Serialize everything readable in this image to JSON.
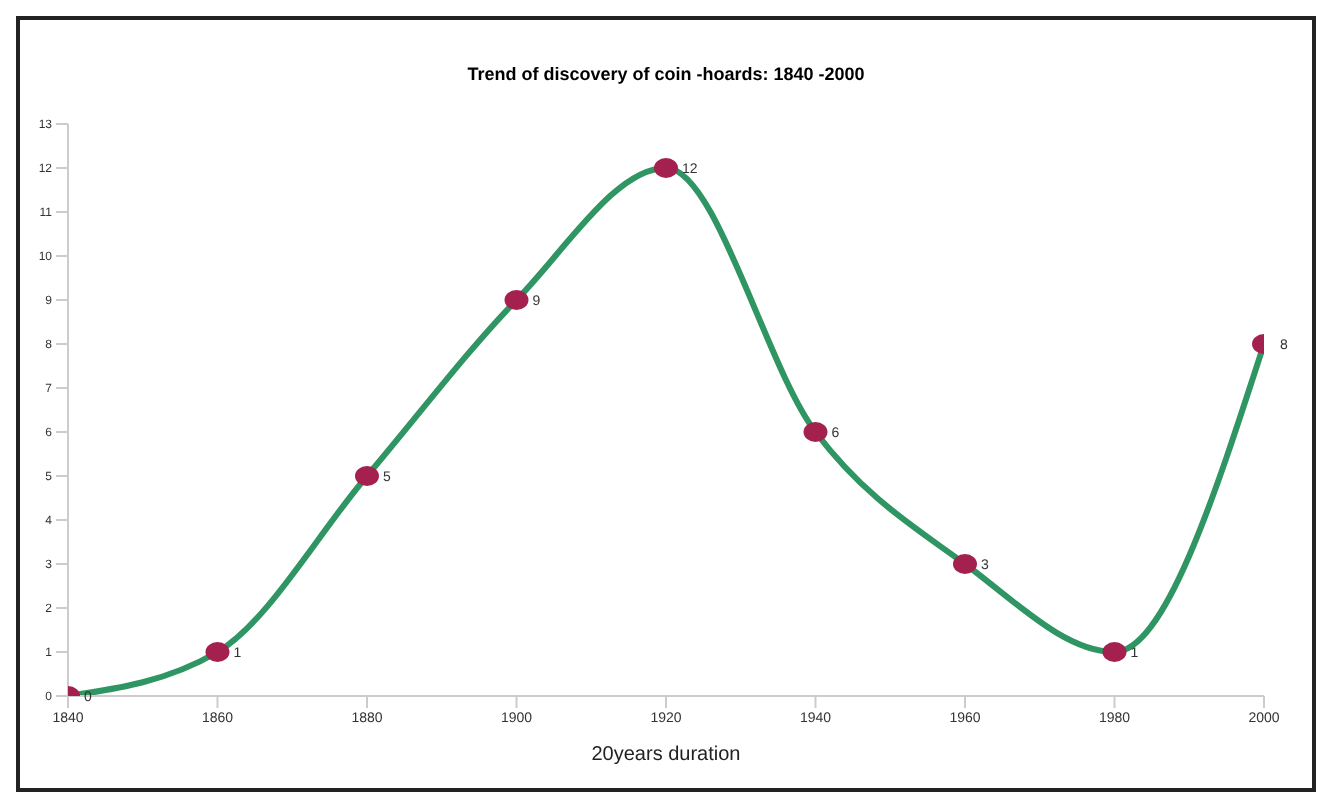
{
  "chart_data": {
    "type": "line",
    "title": "Trend of discovery of coin -hoards: 1840 -2000",
    "xlabel": "20years duration",
    "x": [
      1840,
      1860,
      1880,
      1900,
      1920,
      1940,
      1960,
      1980,
      2000
    ],
    "series": [
      {
        "color": "#2e9563",
        "colors": [
          "#a3204f",
          "#a3204f",
          "#a3204f",
          "#a3204f",
          "#a3204f",
          "#a3204f",
          "#a3204f",
          "#a3204f",
          "#a3204f"
        ],
        "values": [
          0,
          1,
          5,
          9,
          12,
          6,
          3,
          1,
          8
        ]
      }
    ],
    "xlim": [
      1840,
      2000
    ],
    "xticks": [
      1840,
      1860,
      1880,
      1900,
      1920,
      1940,
      1960,
      1980,
      2000
    ],
    "ylim": [
      0,
      13
    ],
    "yticks": [
      0,
      1,
      2,
      3,
      4,
      5,
      6,
      7,
      8,
      9,
      10,
      11,
      12,
      13
    ],
    "marker": "circle",
    "line_style": "solid",
    "data_labels": true,
    "grid": false,
    "legend": false
  }
}
